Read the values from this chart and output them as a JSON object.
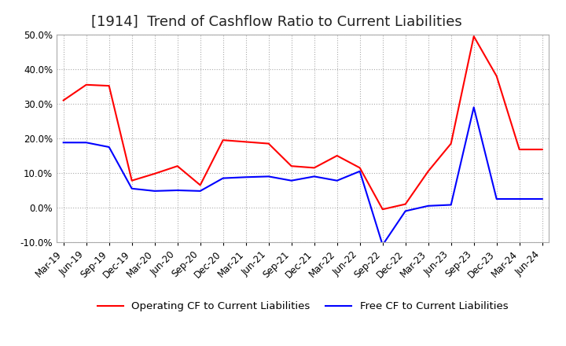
{
  "title": "[1914]  Trend of Cashflow Ratio to Current Liabilities",
  "x_labels": [
    "Mar-19",
    "Jun-19",
    "Sep-19",
    "Dec-19",
    "Mar-20",
    "Jun-20",
    "Sep-20",
    "Dec-20",
    "Mar-21",
    "Jun-21",
    "Sep-21",
    "Dec-21",
    "Mar-22",
    "Jun-22",
    "Sep-22",
    "Dec-22",
    "Mar-23",
    "Jun-23",
    "Sep-23",
    "Dec-23",
    "Mar-24",
    "Jun-24"
  ],
  "operating_cf": [
    0.31,
    0.355,
    0.352,
    0.078,
    0.098,
    0.12,
    0.065,
    0.195,
    0.19,
    0.185,
    0.12,
    0.115,
    0.15,
    0.115,
    -0.005,
    0.01,
    0.105,
    0.185,
    0.495,
    0.38,
    0.168,
    0.168
  ],
  "free_cf": [
    0.188,
    0.188,
    0.175,
    0.055,
    0.048,
    0.05,
    0.048,
    0.085,
    0.088,
    0.09,
    0.078,
    0.09,
    0.078,
    0.105,
    -0.108,
    -0.01,
    0.005,
    0.008,
    0.29,
    0.025,
    0.025,
    0.025
  ],
  "operating_color": "#ff0000",
  "free_color": "#0000ff",
  "ylim": [
    -0.1,
    0.5
  ],
  "yticks": [
    -0.1,
    0.0,
    0.1,
    0.2,
    0.3,
    0.4,
    0.5
  ],
  "background_color": "#ffffff",
  "grid_color": "#aaaaaa",
  "title_fontsize": 13,
  "tick_fontsize": 8.5,
  "legend_fontsize": 9.5
}
